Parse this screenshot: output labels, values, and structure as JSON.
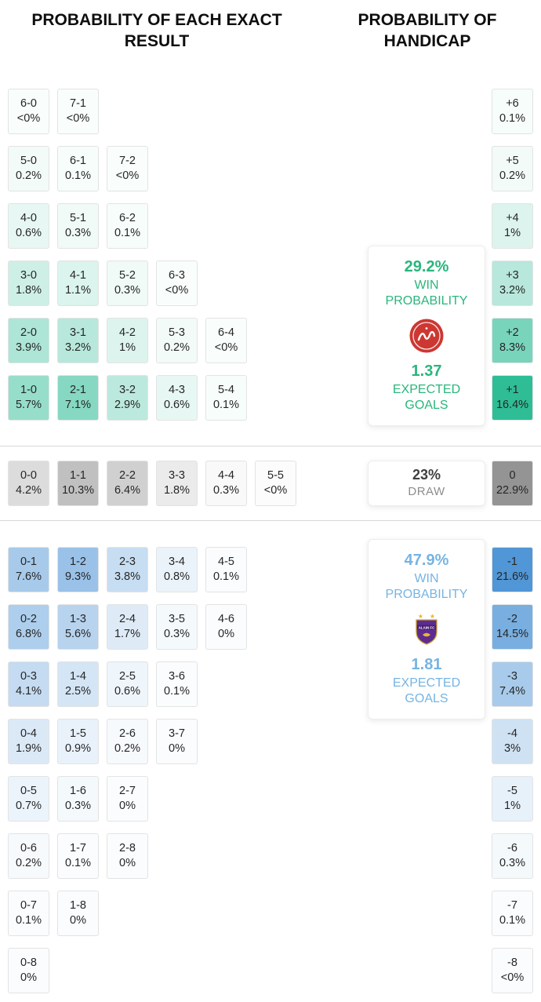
{
  "titles": {
    "exact_result": "PROBABILITY OF EACH EXACT\nRESULT",
    "handicap": "PROBABILITY OF\nHANDICAP"
  },
  "colors": {
    "home_accent": "#29b67c",
    "away_accent": "#76b4e2",
    "draw_number": "#3f3f3f",
    "draw_label": "#8d8d8d",
    "home_cell_base": "#2abb94",
    "draw_cell_base": "#949494",
    "away_cell_base": "#4f95d6",
    "cell_border": "#e3e3e3",
    "divider": "#d8d8d8",
    "home_logo_primary": "#cd3732",
    "away_logo_primary": "#5e2b91"
  },
  "cards": {
    "home": {
      "win_prob": "29.2%",
      "win_label": "WIN PROBABILITY",
      "expected_goals": "1.37",
      "goals_label": "EXPECTED GOALS"
    },
    "draw": {
      "prob": "23%",
      "label": "DRAW"
    },
    "away": {
      "win_prob": "47.9%",
      "win_label": "WIN PROBABILITY",
      "expected_goals": "1.81",
      "goals_label": "EXPECTED GOALS",
      "logo_text": "ALAIN FC"
    }
  },
  "chart_data": [
    {
      "type": "heatmap",
      "title": "PROBABILITY OF EACH EXACT RESULT",
      "home_win_rows": [
        [
          {
            "score": "6-0",
            "prob": "<0%"
          },
          {
            "score": "7-1",
            "prob": "<0%"
          }
        ],
        [
          {
            "score": "5-0",
            "prob": "0.2%"
          },
          {
            "score": "6-1",
            "prob": "0.1%"
          },
          {
            "score": "7-2",
            "prob": "<0%"
          }
        ],
        [
          {
            "score": "4-0",
            "prob": "0.6%"
          },
          {
            "score": "5-1",
            "prob": "0.3%"
          },
          {
            "score": "6-2",
            "prob": "0.1%"
          }
        ],
        [
          {
            "score": "3-0",
            "prob": "1.8%"
          },
          {
            "score": "4-1",
            "prob": "1.1%"
          },
          {
            "score": "5-2",
            "prob": "0.3%"
          },
          {
            "score": "6-3",
            "prob": "<0%"
          }
        ],
        [
          {
            "score": "2-0",
            "prob": "3.9%"
          },
          {
            "score": "3-1",
            "prob": "3.2%"
          },
          {
            "score": "4-2",
            "prob": "1%"
          },
          {
            "score": "5-3",
            "prob": "0.2%"
          },
          {
            "score": "6-4",
            "prob": "<0%"
          }
        ],
        [
          {
            "score": "1-0",
            "prob": "5.7%"
          },
          {
            "score": "2-1",
            "prob": "7.1%"
          },
          {
            "score": "3-2",
            "prob": "2.9%"
          },
          {
            "score": "4-3",
            "prob": "0.6%"
          },
          {
            "score": "5-4",
            "prob": "0.1%"
          }
        ]
      ],
      "draw_row": [
        {
          "score": "0-0",
          "prob": "4.2%"
        },
        {
          "score": "1-1",
          "prob": "10.3%"
        },
        {
          "score": "2-2",
          "prob": "6.4%"
        },
        {
          "score": "3-3",
          "prob": "1.8%"
        },
        {
          "score": "4-4",
          "prob": "0.3%"
        },
        {
          "score": "5-5",
          "prob": "<0%"
        }
      ],
      "away_win_rows": [
        [
          {
            "score": "0-1",
            "prob": "7.6%"
          },
          {
            "score": "1-2",
            "prob": "9.3%"
          },
          {
            "score": "2-3",
            "prob": "3.8%"
          },
          {
            "score": "3-4",
            "prob": "0.8%"
          },
          {
            "score": "4-5",
            "prob": "0.1%"
          }
        ],
        [
          {
            "score": "0-2",
            "prob": "6.8%"
          },
          {
            "score": "1-3",
            "prob": "5.6%"
          },
          {
            "score": "2-4",
            "prob": "1.7%"
          },
          {
            "score": "3-5",
            "prob": "0.3%"
          },
          {
            "score": "4-6",
            "prob": "0%"
          }
        ],
        [
          {
            "score": "0-3",
            "prob": "4.1%"
          },
          {
            "score": "1-4",
            "prob": "2.5%"
          },
          {
            "score": "2-5",
            "prob": "0.6%"
          },
          {
            "score": "3-6",
            "prob": "0.1%"
          }
        ],
        [
          {
            "score": "0-4",
            "prob": "1.9%"
          },
          {
            "score": "1-5",
            "prob": "0.9%"
          },
          {
            "score": "2-6",
            "prob": "0.2%"
          },
          {
            "score": "3-7",
            "prob": "0%"
          }
        ],
        [
          {
            "score": "0-5",
            "prob": "0.7%"
          },
          {
            "score": "1-6",
            "prob": "0.3%"
          },
          {
            "score": "2-7",
            "prob": "0%"
          }
        ],
        [
          {
            "score": "0-6",
            "prob": "0.2%"
          },
          {
            "score": "1-7",
            "prob": "0.1%"
          },
          {
            "score": "2-8",
            "prob": "0%"
          }
        ],
        [
          {
            "score": "0-7",
            "prob": "0.1%"
          },
          {
            "score": "1-8",
            "prob": "0%"
          }
        ],
        [
          {
            "score": "0-8",
            "prob": "0%"
          }
        ]
      ]
    },
    {
      "type": "heatmap",
      "title": "PROBABILITY OF HANDICAP",
      "home": [
        {
          "handicap": "+6",
          "prob": "0.1%"
        },
        {
          "handicap": "+5",
          "prob": "0.2%"
        },
        {
          "handicap": "+4",
          "prob": "1%"
        },
        {
          "handicap": "+3",
          "prob": "3.2%"
        },
        {
          "handicap": "+2",
          "prob": "8.3%"
        },
        {
          "handicap": "+1",
          "prob": "16.4%"
        }
      ],
      "draw": {
        "handicap": "0",
        "prob": "22.9%"
      },
      "away": [
        {
          "handicap": "-1",
          "prob": "21.6%"
        },
        {
          "handicap": "-2",
          "prob": "14.5%"
        },
        {
          "handicap": "-3",
          "prob": "7.4%"
        },
        {
          "handicap": "-4",
          "prob": "3%"
        },
        {
          "handicap": "-5",
          "prob": "1%"
        },
        {
          "handicap": "-6",
          "prob": "0.3%"
        },
        {
          "handicap": "-7",
          "prob": "0.1%"
        },
        {
          "handicap": "-8",
          "prob": "<0%"
        }
      ]
    }
  ]
}
